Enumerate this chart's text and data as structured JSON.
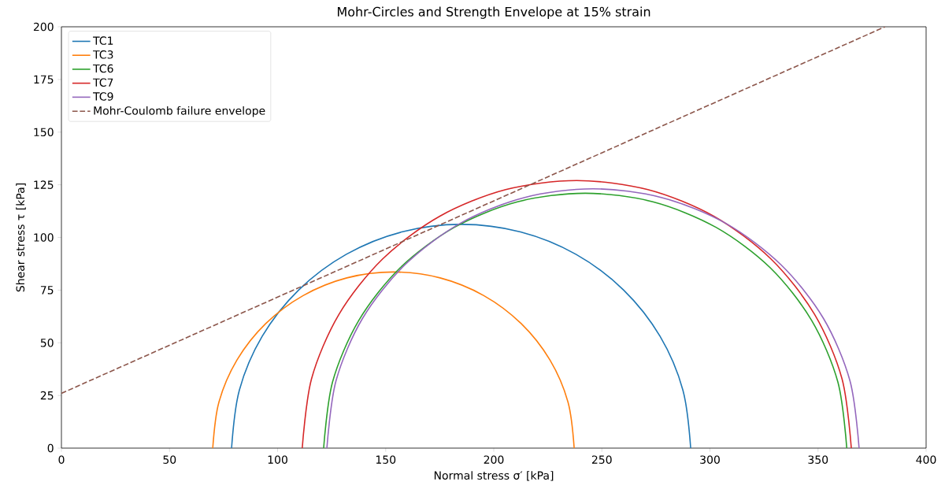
{
  "chart_data": {
    "type": "line",
    "title": "Mohr-Circles and Strength Envelope at 15% strain",
    "xlabel": "Normal stress σ′ [kPa]",
    "ylabel": "Shear stress τ [kPa]",
    "xlim": [
      0,
      400
    ],
    "ylim": [
      0,
      200
    ],
    "xticks": [
      0,
      50,
      100,
      150,
      200,
      250,
      300,
      350,
      400
    ],
    "yticks": [
      0,
      25,
      50,
      75,
      100,
      125,
      150,
      175,
      200
    ],
    "grid": false,
    "legend": "top left",
    "marker": "none",
    "series": [
      {
        "name": "TC1",
        "color": "#1f77b4",
        "line_style": "solid",
        "x": [
          291.1,
          287.5,
          276.9,
          260.0,
          238.0,
          212.4,
          184.9,
          157.4,
          131.8,
          109.8,
          92.9,
          82.3,
          78.7
        ],
        "values": [
          0,
          27.5,
          53.1,
          75.1,
          92.0,
          102.6,
          106.2,
          102.6,
          92.0,
          75.1,
          53.1,
          27.5,
          0
        ]
      },
      {
        "name": "TC3",
        "color": "#ff7f0e",
        "line_style": "solid",
        "x": [
          237.2,
          234.4,
          226.0,
          212.7,
          195.4,
          175.2,
          153.6,
          132.0,
          111.8,
          94.5,
          81.2,
          72.8,
          70.0
        ],
        "values": [
          0,
          21.6,
          41.8,
          59.1,
          72.4,
          80.8,
          83.6,
          80.8,
          72.4,
          59.1,
          41.8,
          21.6,
          0
        ]
      },
      {
        "name": "TC6",
        "color": "#2ca02c",
        "line_style": "solid",
        "x": [
          363.3,
          359.2,
          347.1,
          327.9,
          302.8,
          273.6,
          242.3,
          211.0,
          181.8,
          156.7,
          137.5,
          125.4,
          121.3
        ],
        "values": [
          0,
          31.3,
          60.5,
          85.6,
          104.8,
          116.9,
          121.0,
          116.9,
          104.8,
          85.6,
          60.5,
          31.3,
          0
        ]
      },
      {
        "name": "TC7",
        "color": "#d62728",
        "line_style": "solid",
        "x": [
          365.4,
          361.1,
          348.4,
          328.2,
          301.9,
          271.3,
          238.4,
          205.5,
          174.9,
          148.6,
          128.4,
          115.7,
          111.4
        ],
        "values": [
          0,
          32.9,
          63.5,
          89.8,
          110.0,
          122.7,
          127.0,
          122.7,
          110.0,
          89.8,
          63.5,
          32.9,
          0
        ]
      },
      {
        "name": "TC9",
        "color": "#9467bd",
        "line_style": "solid",
        "x": [
          369.0,
          364.8,
          352.5,
          332.9,
          307.5,
          277.8,
          245.9,
          214.0,
          184.3,
          158.9,
          139.3,
          127.0,
          122.8
        ],
        "values": [
          0,
          31.9,
          61.6,
          87.0,
          106.6,
          118.9,
          123.1,
          118.9,
          106.6,
          87.0,
          61.6,
          31.9,
          0
        ]
      },
      {
        "name": "Mohr-Coulomb failure envelope",
        "color": "#8c564b",
        "line_style": "dashed",
        "x": [
          0,
          381
        ],
        "values": [
          26,
          200
        ]
      }
    ]
  }
}
